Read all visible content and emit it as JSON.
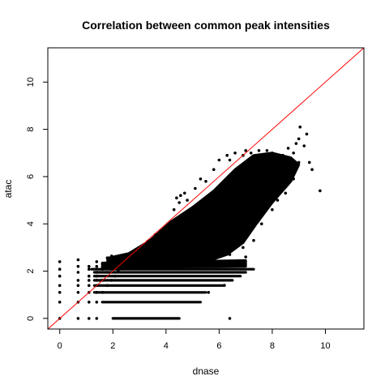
{
  "chart_data": {
    "type": "scatter",
    "title": "Correlation between common peak intensities",
    "xlabel": "dnase",
    "ylabel": "atac",
    "xlim": [
      -0.45,
      11.45
    ],
    "ylim": [
      -0.45,
      11.45
    ],
    "x_ticks": [
      0,
      2,
      4,
      6,
      8,
      10
    ],
    "y_ticks": [
      0,
      2,
      4,
      6,
      8,
      10
    ],
    "grid": false,
    "point_color": "#000000",
    "reference_line": {
      "type": "identity",
      "slope": 1,
      "intercept": 0,
      "color": "#ff0000"
    },
    "series": [
      {
        "points": [
          [
            0.0,
            0.0
          ],
          [
            0.0,
            0.69
          ],
          [
            0.0,
            1.1
          ],
          [
            0.0,
            1.39
          ],
          [
            0.0,
            1.79
          ],
          [
            0.0,
            2.08
          ],
          [
            0.0,
            2.4
          ],
          [
            0.69,
            0.0
          ],
          [
            0.69,
            0.69
          ],
          [
            0.69,
            1.1
          ],
          [
            0.69,
            1.39
          ],
          [
            0.69,
            1.61
          ],
          [
            0.69,
            1.95
          ],
          [
            0.69,
            2.2
          ],
          [
            0.69,
            2.48
          ],
          [
            1.1,
            0.0
          ],
          [
            1.1,
            0.69
          ],
          [
            1.1,
            1.1
          ],
          [
            1.1,
            1.39
          ],
          [
            1.1,
            1.61
          ],
          [
            1.1,
            1.79
          ],
          [
            1.1,
            2.08
          ],
          [
            1.1,
            2.2
          ],
          [
            1.39,
            0.0
          ],
          [
            1.39,
            0.69
          ],
          [
            1.39,
            1.1
          ],
          [
            1.39,
            1.39
          ],
          [
            1.39,
            1.61
          ],
          [
            1.39,
            1.79
          ],
          [
            1.39,
            1.95
          ],
          [
            1.39,
            2.2
          ],
          [
            1.39,
            2.4
          ],
          [
            1.61,
            1.1
          ],
          [
            1.61,
            1.61
          ],
          [
            1.61,
            2.08
          ],
          [
            1.61,
            2.3
          ],
          [
            1.79,
            1.39
          ],
          [
            1.79,
            1.95
          ],
          [
            1.79,
            2.2
          ],
          [
            1.79,
            2.56
          ],
          [
            1.95,
            1.61
          ],
          [
            1.95,
            2.08
          ],
          [
            1.95,
            2.64
          ],
          [
            2.08,
            1.79
          ],
          [
            2.08,
            2.3
          ],
          [
            2.2,
            2.0
          ],
          [
            2.2,
            2.5
          ],
          [
            2.3,
            2.2
          ],
          [
            2.4,
            2.3
          ],
          [
            2.56,
            2.4
          ],
          [
            2.64,
            2.5
          ],
          [
            2.71,
            2.6
          ],
          [
            2.83,
            2.7
          ],
          [
            2.94,
            2.9
          ],
          [
            3.04,
            3.0
          ],
          [
            3.2,
            3.1
          ],
          [
            3.3,
            3.25
          ],
          [
            3.4,
            3.3
          ],
          [
            3.6,
            3.55
          ],
          [
            3.8,
            3.7
          ],
          [
            4.1,
            4.0
          ],
          [
            4.3,
            4.6
          ],
          [
            4.4,
            5.1
          ],
          [
            4.5,
            4.9
          ],
          [
            4.55,
            5.2
          ],
          [
            4.7,
            5.3
          ],
          [
            4.8,
            5.0
          ],
          [
            5.1,
            5.5
          ],
          [
            5.3,
            5.9
          ],
          [
            5.5,
            5.8
          ],
          [
            5.8,
            6.3
          ],
          [
            6.0,
            6.7
          ],
          [
            6.3,
            6.9
          ],
          [
            6.4,
            6.7
          ],
          [
            6.6,
            7.0
          ],
          [
            6.9,
            6.9
          ],
          [
            7.0,
            7.1
          ],
          [
            7.2,
            7.0
          ],
          [
            7.5,
            7.1
          ],
          [
            7.6,
            6.9
          ],
          [
            7.8,
            7.1
          ],
          [
            8.0,
            7.0
          ],
          [
            8.2,
            6.8
          ],
          [
            8.4,
            6.9
          ],
          [
            8.6,
            7.2
          ],
          [
            8.8,
            7.0
          ],
          [
            8.9,
            7.4
          ],
          [
            9.0,
            7.6
          ],
          [
            9.2,
            7.3
          ],
          [
            9.3,
            7.8
          ],
          [
            9.05,
            8.1
          ],
          [
            8.6,
            6.4
          ],
          [
            8.8,
            6.2
          ],
          [
            9.0,
            6.6
          ],
          [
            9.4,
            6.6
          ],
          [
            9.5,
            6.3
          ],
          [
            9.8,
            5.4
          ],
          [
            8.8,
            5.9
          ],
          [
            8.5,
            5.3
          ],
          [
            8.2,
            5.0
          ],
          [
            8.0,
            4.6
          ],
          [
            7.6,
            4.0
          ],
          [
            7.3,
            3.3
          ],
          [
            7.0,
            2.6
          ],
          [
            6.4,
            0.0
          ],
          [
            6.2,
            1.4
          ],
          [
            5.6,
            1.1
          ],
          [
            6.4,
            2.7
          ],
          [
            6.9,
            3.0
          ],
          [
            6.0,
            2.3
          ]
        ]
      }
    ]
  }
}
